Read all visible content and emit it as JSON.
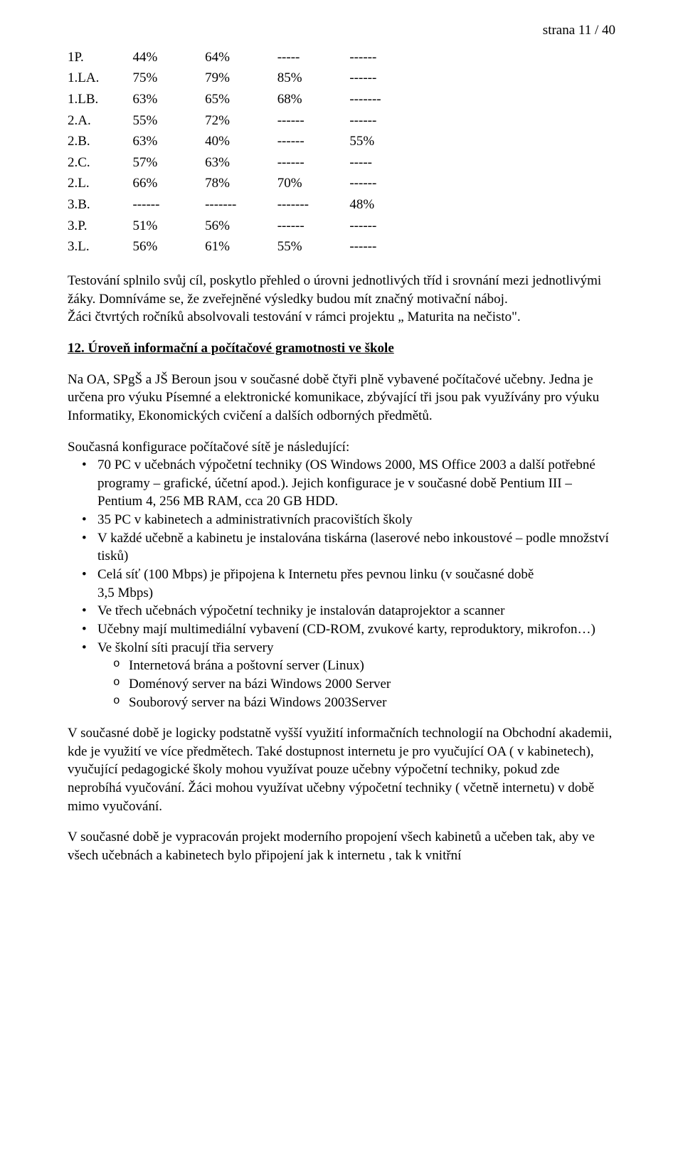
{
  "page_number": "strana 11 / 40",
  "table": {
    "rows": [
      {
        "label": "1P.",
        "c1": "44%",
        "c2": "64%",
        "c3": "-----",
        "c4": "------"
      },
      {
        "label": "1.LA.",
        "c1": "75%",
        "c2": "79%",
        "c3": "85%",
        "c4": "------"
      },
      {
        "label": "1.LB.",
        "c1": "63%",
        "c2": "65%",
        "c3": "68%",
        "c4": "-------"
      },
      {
        "label": "2.A.",
        "c1": "55%",
        "c2": "72%",
        "c3": "------",
        "c4": "------"
      },
      {
        "label": "2.B.",
        "c1": "63%",
        "c2": "40%",
        "c3": "------",
        "c4": "55%"
      },
      {
        "label": "2.C.",
        "c1": "57%",
        "c2": "63%",
        "c3": "------",
        "c4": "-----"
      },
      {
        "label": "2.L.",
        "c1": "66%",
        "c2": "78%",
        "c3": "70%",
        "c4": "------"
      },
      {
        "label": "3.B.",
        "c1": "------",
        "c2": "-------",
        "c3": "-------",
        "c4": "48%"
      },
      {
        "label": "3.P.",
        "c1": "51%",
        "c2": "56%",
        "c3": "------",
        "c4": "------"
      },
      {
        "label": "3.L.",
        "c1": "56%",
        "c2": "61%",
        "c3": "55%",
        "c4": "------"
      }
    ]
  },
  "para1": "Testování splnilo svůj cíl, poskytlo přehled o úrovni jednotlivých tříd i srovnání mezi jednotlivými žáky. Domníváme se, že zveřejněné výsledky budou mít značný motivační náboj.",
  "para1b": "Žáci čtvrtých ročníků absolvovali testování v rámci projektu „ Maturita na nečisto\".",
  "heading12": "12. Úroveň informační a počítačové gramotnosti ve škole",
  "para2": "Na OA, SPgŠ a JŠ Beroun jsou v současné době čtyři plně vybavené počítačové učebny. Jedna je určena pro výuku Písemné a elektronické komunikace, zbývající tři jsou pak využívány pro výuku Informatiky, Ekonomických cvičení a dalších odborných předmětů.",
  "para3": "Současná konfigurace počítačové sítě je následující:",
  "bullets": [
    {
      "text": "70 PC v učebnách výpočetní techniky (OS Windows 2000, MS Office 2003 a další potřebné programy – grafické, účetní apod.). Jejich konfigurace je v současné době Pentium III – Pentium 4, 256 MB RAM, cca 20 GB HDD."
    },
    {
      "text": "35 PC v kabinetech a administrativních pracovištích školy"
    },
    {
      "text": "V každé učebně a kabinetu je instalována tiskárna (laserové nebo inkoustové – podle množství tisků)"
    },
    {
      "text": "Celá síť (100 Mbps) je připojena k Internetu přes pevnou linku (v současné době\n3,5 Mbps)"
    },
    {
      "text": "Ve třech učebnách výpočetní techniky je instalován dataprojektor a scanner"
    },
    {
      "text": "Učebny mají multimediální vybavení (CD-ROM, zvukové karty, reproduktory, mikrofon…)"
    },
    {
      "text": "Ve školní síti pracují třia servery",
      "sub": [
        "Internetová brána a poštovní server (Linux)",
        "Doménový server na bázi Windows 2000 Server",
        "Souborový server na bázi Windows 2003Server"
      ]
    }
  ],
  "para4": "V současné době je logicky podstatně vyšší využití informačních technologií na Obchodní akademii, kde je využití ve více předmětech. Také dostupnost internetu je pro vyučující OA ( v kabinetech), vyučující pedagogické školy mohou využívat pouze učebny výpočetní techniky, pokud zde neprobíhá vyučování. Žáci mohou využívat učebny výpočetní techniky ( včetně internetu) v době mimo vyučování.",
  "para5": "V současné době je vypracován projekt moderního propojení všech kabinetů a učeben tak, aby ve všech učebnách a kabinetech bylo připojení jak k internetu , tak k vnitřní"
}
